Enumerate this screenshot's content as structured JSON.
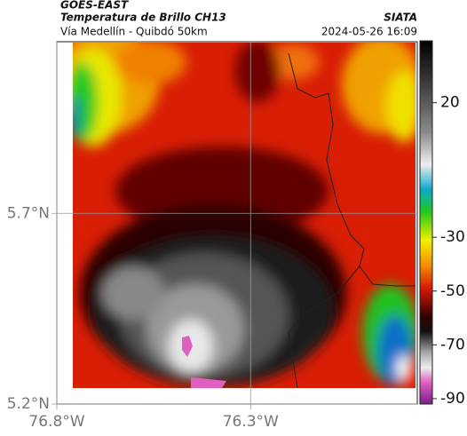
{
  "header": {
    "source": "GOES-EAST",
    "title": "Temperatura de Brillo CH13",
    "org": "SIATA",
    "subtitle": "Vía Medellín - Quibdó 50km",
    "timestamp": "2024-05-26 16:09"
  },
  "map": {
    "lonlim": [
      -76.8,
      -75.87
    ],
    "latlim": [
      5.2,
      6.15
    ],
    "xticks": [
      {
        "value": -76.8,
        "label": "76.8°W"
      },
      {
        "value": -76.3,
        "label": "76.3°W"
      }
    ],
    "yticks": [
      {
        "value": 5.7,
        "label": "5.7°N"
      },
      {
        "value": 5.2,
        "label": "5.2°N"
      }
    ]
  },
  "colorbar": {
    "range": [
      -92,
      43
    ],
    "ticks": [
      20,
      -30,
      -50,
      -70,
      -90
    ]
  }
}
